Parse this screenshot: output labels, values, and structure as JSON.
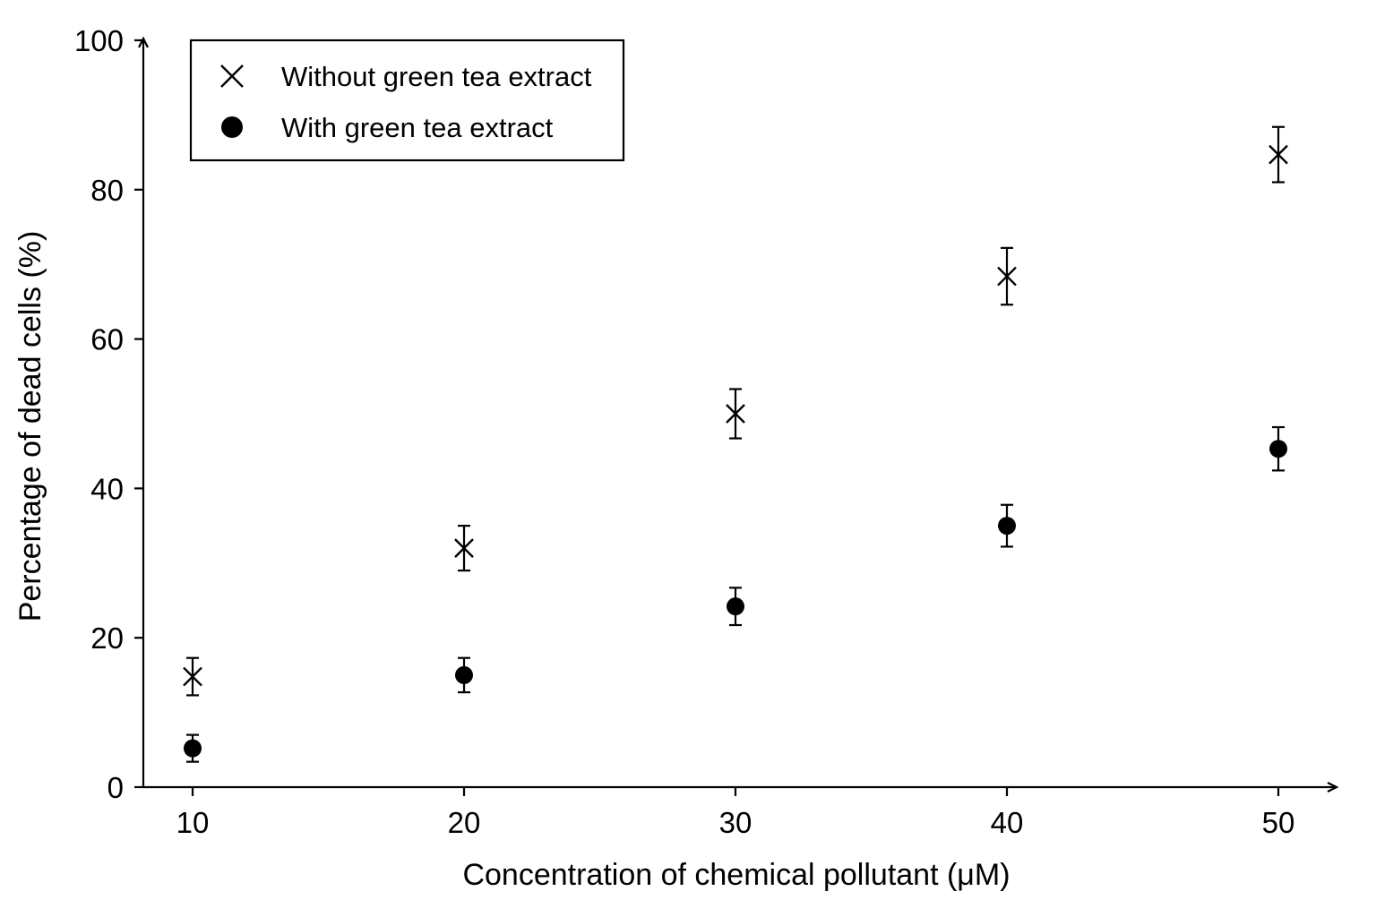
{
  "chart_data": {
    "type": "scatter",
    "title": "",
    "xlabel": "Concentration of chemical pollutant (μM)",
    "ylabel": "Percentage of dead cells (%)",
    "x": [
      10,
      20,
      30,
      40,
      50
    ],
    "xticks": [
      "10",
      "20",
      "30",
      "40",
      "50"
    ],
    "yticks": [
      "0",
      "20",
      "40",
      "60",
      "80",
      "100"
    ],
    "ylim": [
      0,
      100
    ],
    "xlim": [
      8,
      52
    ],
    "grid": false,
    "legend_position": "top-left",
    "series": [
      {
        "name": "Without green tea extract",
        "marker": "cross",
        "values": [
          14.8,
          32,
          50,
          68.4,
          84.7
        ],
        "error": [
          2.5,
          3,
          3.3,
          3.8,
          3.7
        ]
      },
      {
        "name": "With green tea extract",
        "marker": "filled-circle",
        "values": [
          5.2,
          15,
          24.2,
          35,
          45.3
        ],
        "error": [
          1.8,
          2.3,
          2.5,
          2.8,
          2.9
        ]
      }
    ]
  }
}
